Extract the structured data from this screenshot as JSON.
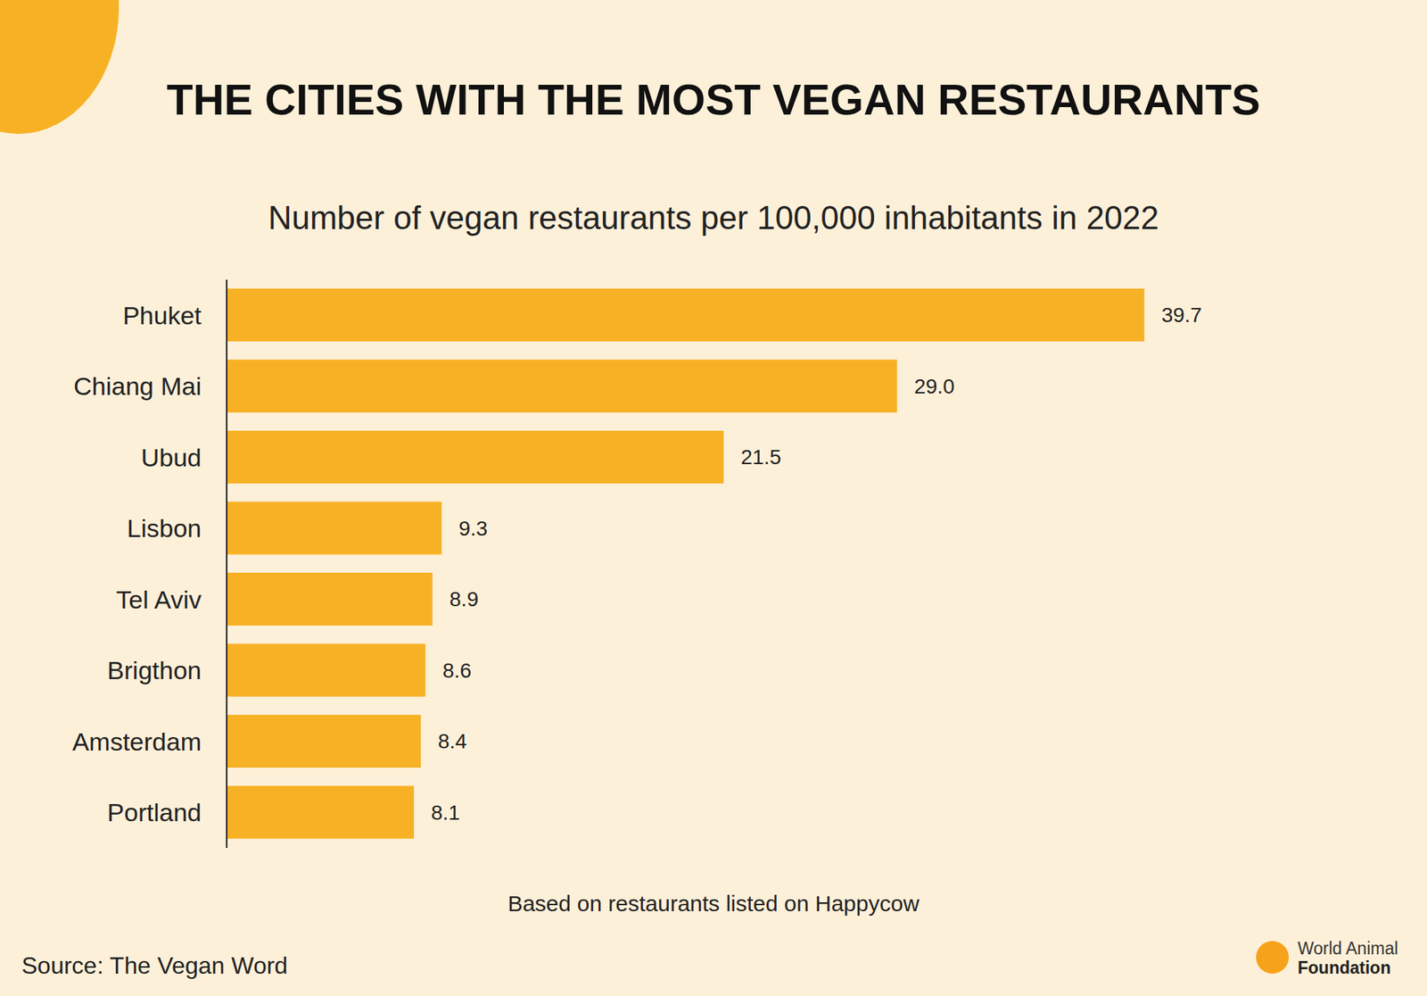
{
  "chart_data": {
    "type": "bar",
    "title": "THE CITIES WITH THE MOST VEGAN RESTAURANTS",
    "subtitle": "Number of vegan restaurants per 100,000 inhabitants in 2022",
    "note": "Based on restaurants listed on Happycow",
    "source": "Source: The Vegan Word",
    "logo_text": [
      "World Animal",
      "Foundation"
    ],
    "categories": [
      "Phuket",
      "Chiang Mai",
      "Ubud",
      "Lisbon",
      "Tel Aviv",
      "Brigthon",
      "Amsterdam",
      "Portland"
    ],
    "values": [
      39.7,
      29.0,
      21.5,
      9.3,
      8.9,
      8.6,
      8.4,
      8.1
    ],
    "value_labels": [
      "39.7",
      "29.0",
      "21.5",
      "9.3",
      "8.9",
      "8.6",
      "8.4",
      "8.1"
    ],
    "color": "#f7b124",
    "orientation": "horizontal",
    "xlim": [
      0,
      40
    ],
    "data_labels": true,
    "tick_labels": "y",
    "grid": false
  }
}
